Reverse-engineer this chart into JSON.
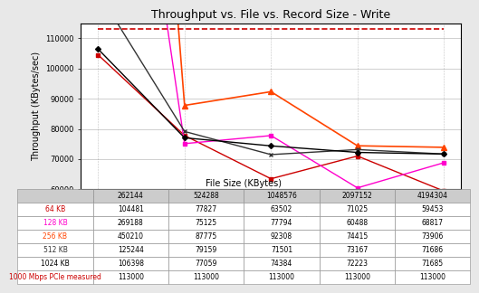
{
  "title": "Throughput vs. File vs. Record Size - Write",
  "xlabel": "File Size (KBytes)",
  "ylabel": "Throughput (KBytes/sec)",
  "x_values": [
    262144,
    524288,
    1048576,
    2097152,
    4194304
  ],
  "x_labels": [
    "262144",
    "524288",
    "1048576",
    "2097152",
    "4194304"
  ],
  "series": [
    {
      "label": "64 KB",
      "color": "#cc0000",
      "marker": "s",
      "linestyle": "-",
      "linewidth": 1.0,
      "markersize": 3,
      "values": [
        104481,
        77827,
        63502,
        71025,
        59453
      ]
    },
    {
      "label": "128 KB",
      "color": "#ff00cc",
      "marker": "s",
      "linestyle": "-",
      "linewidth": 1.0,
      "markersize": 3,
      "values": [
        269188,
        75125,
        77794,
        60488,
        68817
      ]
    },
    {
      "label": "256 KB",
      "color": "#ff4400",
      "marker": "^",
      "linestyle": "-",
      "linewidth": 1.2,
      "markersize": 4,
      "values": [
        450210,
        87775,
        92308,
        74415,
        73906
      ]
    },
    {
      "label": "512 KB",
      "color": "#333333",
      "marker": "x",
      "linestyle": "-",
      "linewidth": 1.0,
      "markersize": 3,
      "values": [
        125244,
        79159,
        71501,
        73167,
        71686
      ]
    },
    {
      "label": "1024 KB",
      "color": "#000000",
      "marker": "D",
      "linestyle": "-",
      "linewidth": 1.0,
      "markersize": 3,
      "values": [
        106398,
        77059,
        74384,
        72223,
        71685
      ]
    },
    {
      "label": "1000 Mbps PCIe measured",
      "color": "#cc0000",
      "marker": null,
      "linestyle": "--",
      "linewidth": 1.2,
      "markersize": 0,
      "values": [
        113000,
        113000,
        113000,
        113000,
        113000
      ]
    }
  ],
  "ylim": [
    60000,
    115000
  ],
  "yticks": [
    60000,
    70000,
    80000,
    90000,
    100000,
    110000
  ],
  "background_color": "#e8e8e8",
  "plot_bg_color": "#ffffff",
  "grid_color": "#888888",
  "title_fontsize": 9,
  "tick_fontsize": 6,
  "label_fontsize": 7,
  "table_fontsize": 5.5
}
